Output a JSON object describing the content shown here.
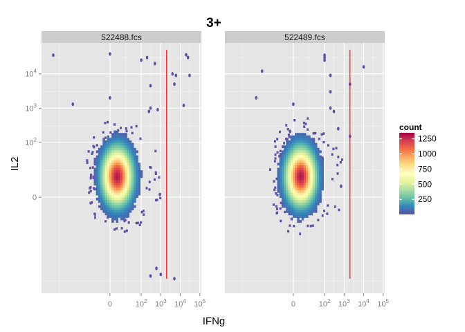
{
  "chart_data": {
    "type": "heatmap",
    "title": "3+",
    "xlabel": "IFNg",
    "ylabel": "IL2",
    "x_ticks": [
      {
        "value": "0",
        "base": "0",
        "exp": ""
      },
      {
        "value": "10^2",
        "base": "10",
        "exp": "2"
      },
      {
        "value": "10^3",
        "base": "10",
        "exp": "3"
      },
      {
        "value": "10^4",
        "base": "10",
        "exp": "4"
      },
      {
        "value": "10^5",
        "base": "10",
        "exp": "5"
      }
    ],
    "y_ticks": [
      {
        "value": "0",
        "base": "0",
        "exp": ""
      },
      {
        "value": "10^2",
        "base": "10",
        "exp": "2"
      },
      {
        "value": "10^3",
        "base": "10",
        "exp": "3"
      },
      {
        "value": "10^4",
        "base": "10",
        "exp": "4"
      }
    ],
    "legend": {
      "title": "count",
      "labels": [
        "1250",
        "1000",
        "750",
        "500",
        "250"
      ],
      "values": [
        1250,
        1000,
        750,
        500,
        250
      ],
      "range": [
        1,
        1350
      ],
      "colors": [
        "#5E4FA2",
        "#3288BD",
        "#66C2A5",
        "#ABDDA4",
        "#E6F598",
        "#FFFFBF",
        "#FEE08B",
        "#FDAE61",
        "#F46D43",
        "#D53E4F",
        "#9E0142"
      ]
    },
    "gate_color": "#FF0000",
    "panels": [
      {
        "name": "522488.fcs",
        "cluster": {
          "x_center": 20,
          "y_center": 40,
          "peak_count": 1300
        },
        "gate_x": 2000,
        "gate_y_range": [
          -600,
          50000
        ],
        "outliers": [
          [
            -2000,
            35000
          ],
          [
            0,
            38000
          ],
          [
            200,
            30000
          ],
          [
            100,
            25000
          ],
          [
            500,
            20000
          ],
          [
            20000,
            36000
          ],
          [
            25000,
            30000
          ],
          [
            4000,
            10000
          ],
          [
            6000,
            9000
          ],
          [
            30000,
            9000
          ],
          [
            5000,
            5000
          ],
          [
            15000,
            1200
          ],
          [
            300,
            4500
          ],
          [
            0,
            2000
          ],
          [
            -200,
            1300
          ],
          [
            700,
            900
          ],
          [
            300,
            1000
          ],
          [
            250,
            800
          ],
          [
            5000,
            -600
          ],
          [
            1000,
            -450
          ],
          [
            300,
            -500
          ],
          [
            600,
            -300
          ],
          [
            900,
            5
          ]
        ]
      },
      {
        "name": "522489.fcs",
        "cluster": {
          "x_center": 20,
          "y_center": 40,
          "peak_count": 1300
        },
        "gate_x": 2000,
        "gate_y_range": [
          -600,
          50000
        ],
        "outliers": [
          [
            100,
            35000
          ],
          [
            100,
            30000
          ],
          [
            100,
            25000
          ],
          [
            -100,
            12000
          ],
          [
            10000,
            16000
          ],
          [
            200,
            9000
          ],
          [
            2000,
            5000
          ],
          [
            200,
            3000
          ],
          [
            -200,
            2000
          ],
          [
            0,
            1300
          ],
          [
            300,
            800
          ],
          [
            200,
            1000
          ],
          [
            500,
            250
          ],
          [
            2000,
            150
          ],
          [
            700,
            20
          ]
        ]
      }
    ]
  }
}
